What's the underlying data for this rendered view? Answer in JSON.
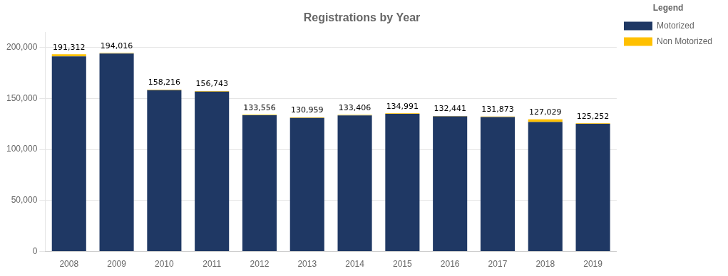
{
  "chart_data": {
    "type": "bar",
    "title": "Registrations by Year",
    "stacked": true,
    "categories": [
      "2008",
      "2009",
      "2010",
      "2011",
      "2012",
      "2013",
      "2014",
      "2015",
      "2016",
      "2017",
      "2018",
      "2019"
    ],
    "series": [
      {
        "name": "Motorized",
        "color": "#1F3864",
        "values": [
          191312,
          194016,
          158216,
          156743,
          133556,
          130959,
          133406,
          134991,
          132441,
          131873,
          127029,
          125252
        ],
        "data_labels": true,
        "value_labels": [
          "191,312",
          "194,016",
          "158,216",
          "156,743",
          "133,556",
          "130,959",
          "133,406",
          "134,991",
          "132,441",
          "131,873",
          "127,029",
          "125,252"
        ]
      },
      {
        "name": "Non Motorized",
        "color": "#FFC000",
        "values": [
          2000,
          500,
          500,
          500,
          500,
          500,
          500,
          500,
          500,
          500,
          2500,
          500
        ]
      }
    ],
    "ylim": [
      0,
      215000
    ],
    "yticks": [
      0,
      {
        "value": 50000,
        "label": "50,000"
      },
      {
        "value": 100000,
        "label": "100,000"
      },
      {
        "value": 150000,
        "label": "150,000"
      },
      {
        "value": 200000,
        "label": "200,000"
      }
    ],
    "grid": true,
    "legend": "right",
    "legend_title": "Legend"
  }
}
